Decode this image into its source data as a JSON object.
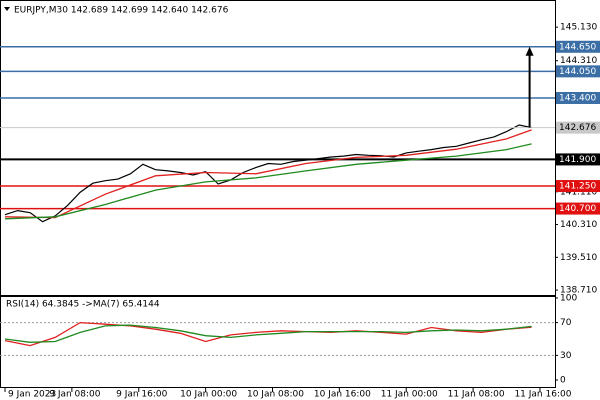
{
  "chart_data": [
    {
      "type": "line",
      "title": "EURJPY,M30  142.689 142.699 142.640 142.676",
      "xlim": [
        -0.6,
        65.8
      ],
      "xticks": [
        {
          "value": 0,
          "label": "9 Jan 2023"
        },
        {
          "value": 8,
          "label": "9 Jan 08:00"
        },
        {
          "value": 16,
          "label": "9 Jan 16:00"
        },
        {
          "value": 24,
          "label": "10 Jan 00:00"
        },
        {
          "value": 32,
          "label": "10 Jan 08:00"
        },
        {
          "value": 40,
          "label": "10 Jan 16:00"
        },
        {
          "value": 48,
          "label": "11 Jan 00:00"
        },
        {
          "value": 56,
          "label": "11 Jan 08:00"
        },
        {
          "value": 64,
          "label": "11 Jan 16:00"
        }
      ],
      "ylim": [
        138.59,
        145.67
      ],
      "yticks": [
        {
          "value": 145.13,
          "label": "145.130"
        },
        {
          "value": 144.31,
          "label": "144.310"
        },
        {
          "value": 141.11,
          "label": "141.110"
        },
        {
          "value": 140.31,
          "label": "140.310"
        },
        {
          "value": 139.51,
          "label": "139.510"
        },
        {
          "value": 138.71,
          "label": "138.710"
        }
      ],
      "series": [
        {
          "color": "#000000",
          "x": [
            0,
            1.5,
            3,
            4.5,
            6,
            7.5,
            9,
            10.5,
            12,
            13.5,
            15,
            16.5,
            18,
            19.5,
            21,
            22.5,
            24,
            25.5,
            27,
            28.5,
            30,
            31.5,
            33,
            34.5,
            36,
            37.5,
            39,
            40.5,
            42,
            43.5,
            45,
            46.5,
            48,
            49.5,
            51,
            52.5,
            54,
            55.5,
            57,
            58.5,
            60,
            61.5,
            63
          ],
          "values": [
            140.55,
            140.65,
            140.6,
            140.38,
            140.52,
            140.78,
            141.1,
            141.32,
            141.38,
            141.42,
            141.55,
            141.78,
            141.65,
            141.62,
            141.58,
            141.52,
            141.6,
            141.3,
            141.4,
            141.58,
            141.7,
            141.8,
            141.78,
            141.85,
            141.88,
            141.92,
            141.96,
            141.98,
            142.02,
            142.0,
            141.99,
            141.96,
            142.06,
            142.1,
            142.14,
            142.19,
            142.22,
            142.3,
            142.38,
            142.45,
            142.58,
            142.74,
            142.676
          ]
        },
        {
          "color": "#e02020",
          "x": [
            0,
            6,
            12,
            18,
            24,
            30,
            36,
            42,
            48,
            54,
            60,
            63
          ],
          "values": [
            140.5,
            140.48,
            141.05,
            141.5,
            141.58,
            141.55,
            141.8,
            141.95,
            142.0,
            142.15,
            142.4,
            142.62
          ]
        },
        {
          "color": "#1f8a1f",
          "x": [
            0,
            6,
            12,
            18,
            24,
            30,
            36,
            42,
            48,
            54,
            60,
            63
          ],
          "values": [
            140.45,
            140.5,
            140.8,
            141.15,
            141.35,
            141.45,
            141.62,
            141.78,
            141.88,
            141.98,
            142.14,
            142.28
          ]
        }
      ],
      "levels": [
        {
          "value": 144.65,
          "label": "144.650",
          "color": "#3a6ea5"
        },
        {
          "value": 144.05,
          "label": "144.050",
          "color": "#3a6ea5"
        },
        {
          "value": 143.4,
          "label": "143.400",
          "color": "#3a6ea5"
        },
        {
          "value": 141.9,
          "label": "141.900",
          "color": "#000000"
        },
        {
          "value": 141.25,
          "label": "141.250",
          "color": "#e01010"
        },
        {
          "value": 140.7,
          "label": "140.700",
          "color": "#e01010"
        }
      ],
      "last_price": {
        "value": 142.676,
        "label": "142.676"
      }
    },
    {
      "type": "line",
      "title": "RSI(14) 64.3845  ->MA(7) 65.4144",
      "xlim": [
        -0.6,
        65.8
      ],
      "ylim": [
        0,
        100
      ],
      "yticks": [
        100,
        70,
        30,
        0
      ],
      "reference_lines": [
        70,
        30
      ],
      "series": [
        {
          "color": "#e02020",
          "x": [
            0,
            3,
            6,
            9,
            12,
            15,
            18,
            21,
            24,
            27,
            30,
            33,
            36,
            39,
            42,
            45,
            48,
            51,
            54,
            57,
            60,
            63
          ],
          "values": [
            48,
            42,
            52,
            70,
            68,
            66,
            62,
            57,
            47,
            55,
            58,
            60,
            59,
            58,
            60,
            58,
            56,
            64,
            60,
            58,
            62,
            64.3845
          ]
        },
        {
          "color": "#1f8a1f",
          "x": [
            0,
            3,
            6,
            9,
            12,
            15,
            18,
            21,
            24,
            27,
            30,
            33,
            36,
            39,
            42,
            45,
            48,
            51,
            54,
            57,
            60,
            63
          ],
          "values": [
            50,
            46,
            47,
            58,
            66,
            67,
            64,
            60,
            54,
            52,
            55,
            57,
            59,
            59,
            59,
            59,
            58,
            60,
            61,
            60,
            62,
            65.4144
          ]
        }
      ]
    }
  ]
}
